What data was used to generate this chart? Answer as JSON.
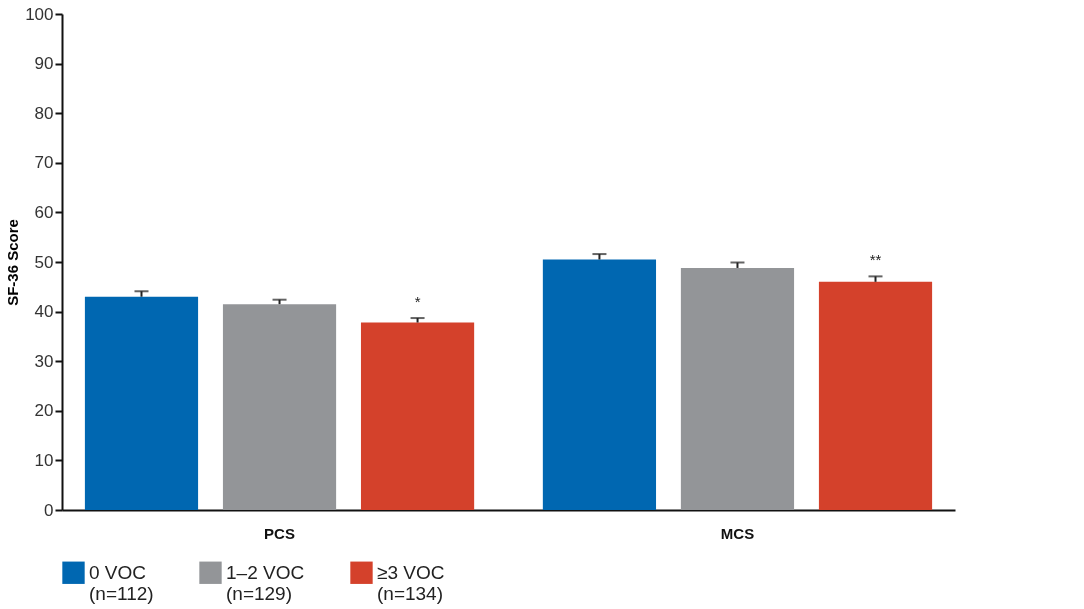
{
  "chart_data": {
    "type": "bar",
    "ylabel": "SF-36 Score",
    "categories": [
      "PCS",
      "MCS"
    ],
    "series": [
      {
        "name": "0 VOC\n(n=112)",
        "color": "#0067b1",
        "values": [
          43.0,
          50.5
        ],
        "errors": [
          [
            43.0,
            44.1
          ],
          [
            50.5,
            51.6
          ]
        ]
      },
      {
        "name": "1–2 VOC\n(n=129)",
        "color": "#939598",
        "values": [
          41.5,
          48.8
        ],
        "errors": [
          [
            41.5,
            42.4
          ],
          [
            48.8,
            49.9
          ]
        ]
      },
      {
        "name": "≥3 VOC\n(n=134)",
        "color": "#d4412b",
        "values": [
          37.8,
          46.0
        ],
        "errors": [
          [
            37.8,
            38.7
          ],
          [
            46.0,
            47.1
          ]
        ],
        "value_labels": [
          "*",
          "**"
        ]
      }
    ],
    "ylim": [
      0,
      100
    ],
    "yticks": [
      0,
      10,
      20,
      30,
      40,
      50,
      60,
      70,
      80,
      90,
      100
    ],
    "grid": false,
    "legend": "bottom"
  }
}
